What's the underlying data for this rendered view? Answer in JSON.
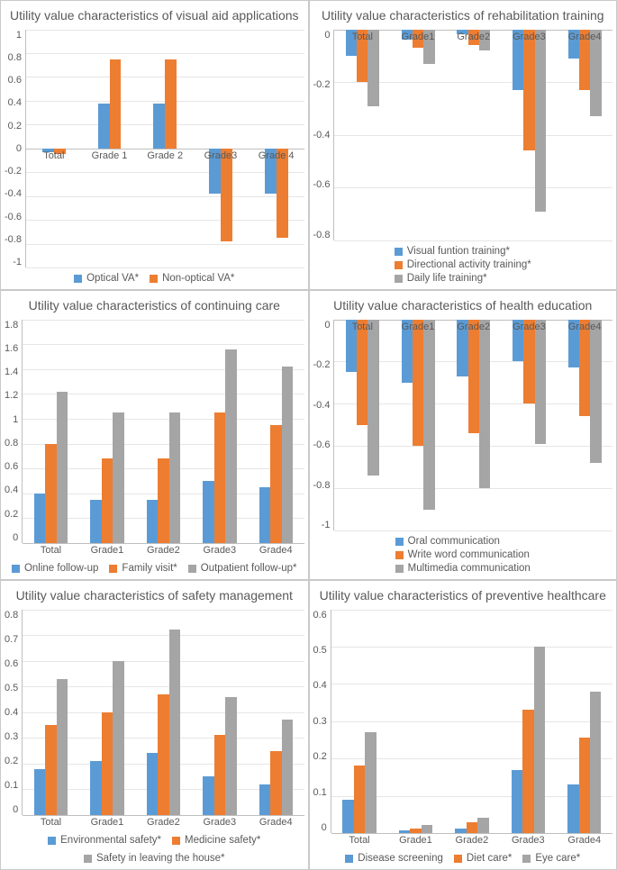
{
  "colors": {
    "blue": "#5b9bd5",
    "orange": "#ed7d31",
    "gray": "#a5a5a5",
    "text": "#595959",
    "grid": "#e6e6e6",
    "axis": "#bfbfbf"
  },
  "charts": [
    {
      "title": "Utility value characteristics of visual aid applications",
      "categories": [
        "Total",
        "Grade 1",
        "Grade 2",
        "Grade3",
        "Grade 4"
      ],
      "ymin": -1,
      "ymax": 1,
      "ystep": 0.2,
      "cat_labels_at_zero": true,
      "legend_layout": "row",
      "series": [
        {
          "name": "Optical VA*",
          "color": "#5b9bd5",
          "values": [
            -0.03,
            0.38,
            0.38,
            -0.38,
            -0.38
          ]
        },
        {
          "name": "Non-optical VA*",
          "color": "#ed7d31",
          "values": [
            -0.05,
            0.75,
            0.75,
            -0.78,
            -0.75
          ]
        }
      ]
    },
    {
      "title": "Utility value characteristics of rehabilitation training",
      "categories": [
        "Total",
        "Grade1",
        "Grade2",
        "Grade3",
        "Grade4"
      ],
      "ymin": -0.8,
      "ymax": 0,
      "ystep": 0.2,
      "cat_labels_at_zero": true,
      "legend_layout": "column",
      "series": [
        {
          "name": "Visual funtion training*",
          "color": "#5b9bd5",
          "values": [
            -0.1,
            -0.04,
            -0.02,
            -0.23,
            -0.11
          ]
        },
        {
          "name": "Directional activity training*",
          "color": "#ed7d31",
          "values": [
            -0.2,
            -0.07,
            -0.06,
            -0.46,
            -0.23
          ]
        },
        {
          "name": "Daily life training*",
          "color": "#a5a5a5",
          "values": [
            -0.29,
            -0.13,
            -0.08,
            -0.69,
            -0.33
          ]
        }
      ]
    },
    {
      "title": "Utility value characteristics of continuing care",
      "categories": [
        "Total",
        "Grade1",
        "Grade2",
        "Grade3",
        "Grade4"
      ],
      "ymin": 0,
      "ymax": 1.8,
      "ystep": 0.2,
      "cat_labels_at_zero": true,
      "legend_layout": "row",
      "series": [
        {
          "name": "Online follow-up",
          "color": "#5b9bd5",
          "values": [
            0.4,
            0.35,
            0.35,
            0.5,
            0.45
          ]
        },
        {
          "name": "Family visit*",
          "color": "#ed7d31",
          "values": [
            0.8,
            0.68,
            0.68,
            1.05,
            0.95
          ]
        },
        {
          "name": "Outpatient follow-up*",
          "color": "#a5a5a5",
          "values": [
            1.22,
            1.05,
            1.05,
            1.56,
            1.42
          ]
        }
      ]
    },
    {
      "title": "Utility value characteristics of health education",
      "categories": [
        "Total",
        "Grade1",
        "Grade2",
        "Grade3",
        "Grade4"
      ],
      "ymin": -1,
      "ymax": 0,
      "ystep": 0.2,
      "cat_labels_at_zero": true,
      "legend_layout": "column",
      "series": [
        {
          "name": "Oral communication",
          "color": "#5b9bd5",
          "values": [
            -0.25,
            -0.3,
            -0.27,
            -0.2,
            -0.23
          ]
        },
        {
          "name": "Write word communication",
          "color": "#ed7d31",
          "values": [
            -0.5,
            -0.6,
            -0.54,
            -0.4,
            -0.46
          ]
        },
        {
          "name": "Multimedia communication",
          "color": "#a5a5a5",
          "values": [
            -0.74,
            -0.9,
            -0.8,
            -0.59,
            -0.68
          ]
        }
      ]
    },
    {
      "title": "Utility value characteristics of safety management",
      "categories": [
        "Total",
        "Grade1",
        "Grade2",
        "Grade3",
        "Grade4"
      ],
      "ymin": 0,
      "ymax": 0.8,
      "ystep": 0.1,
      "cat_labels_at_zero": true,
      "legend_layout": "row",
      "series": [
        {
          "name": "Environmental safety*",
          "color": "#5b9bd5",
          "values": [
            0.18,
            0.21,
            0.24,
            0.15,
            0.12
          ]
        },
        {
          "name": "Medicine safety*",
          "color": "#ed7d31",
          "values": [
            0.35,
            0.4,
            0.47,
            0.31,
            0.25
          ]
        },
        {
          "name": "Safety in leaving the house*",
          "color": "#a5a5a5",
          "values": [
            0.53,
            0.6,
            0.72,
            0.46,
            0.37
          ]
        }
      ]
    },
    {
      "title": "Utility value characteristics of preventive healthcare",
      "categories": [
        "Total",
        "Grade1",
        "Grade2",
        "Grade3",
        "Grade4"
      ],
      "ymin": 0,
      "ymax": 0.6,
      "ystep": 0.1,
      "cat_labels_at_zero": true,
      "legend_layout": "row",
      "series": [
        {
          "name": "Disease screening",
          "color": "#5b9bd5",
          "values": [
            0.09,
            0.007,
            0.012,
            0.17,
            0.13
          ]
        },
        {
          "name": "Diet care*",
          "color": "#ed7d31",
          "values": [
            0.18,
            0.012,
            0.028,
            0.33,
            0.255
          ]
        },
        {
          "name": "Eye care*",
          "color": "#a5a5a5",
          "values": [
            0.27,
            0.022,
            0.042,
            0.5,
            0.38
          ]
        }
      ]
    }
  ]
}
